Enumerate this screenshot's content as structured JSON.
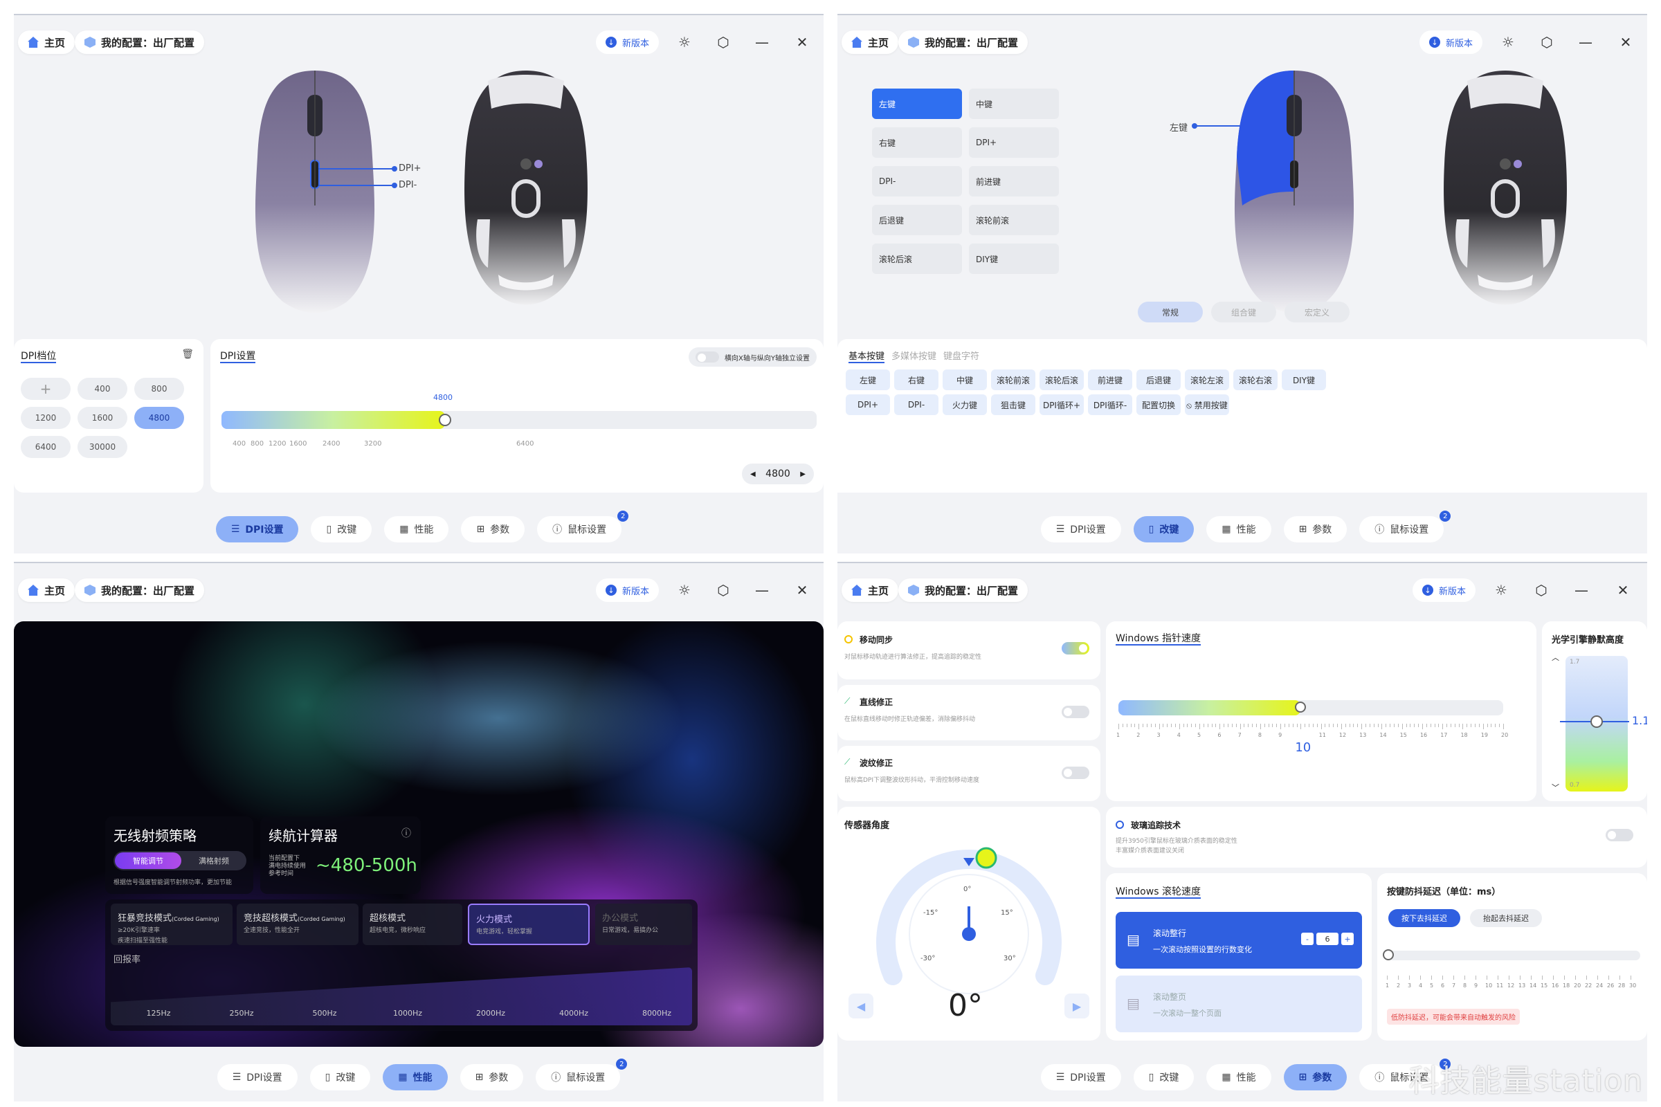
{
  "header": {
    "home": "主页",
    "config": "我的配置：出厂配置",
    "new_version": "新版本"
  },
  "tabs": [
    {
      "label": "DPI设置"
    },
    {
      "label": "改键"
    },
    {
      "label": "性能"
    },
    {
      "label": "参数"
    },
    {
      "label": "鼠标设置",
      "badge": "2"
    }
  ],
  "watermark": "科技能量station",
  "panel1": {
    "dpi_plus": "DPI+",
    "dpi_minus": "DPI-",
    "dpi_levels_title": "DPI档位",
    "dpi_levels": [
      "+",
      "400",
      "800",
      "1200",
      "1600",
      "4800",
      "6400",
      "30000"
    ],
    "active_level": "4800",
    "dpi_settings_title": "DPI设置",
    "xy_toggle_label": "横向X轴与纵向Y轴独立设置",
    "slider_value": "4800",
    "slider_fraction": 0.375,
    "ticks": [
      "400",
      "800",
      "1200",
      "1600",
      "2400",
      "3200",
      "6400"
    ],
    "stepper_value": "4800"
  },
  "panel2": {
    "left_label": "左键",
    "keys": [
      "左键",
      "中键",
      "右键",
      "DPI+",
      "DPI-",
      "前进键",
      "后退键",
      "滚轮前滚",
      "滚轮后滚",
      "DIY键"
    ],
    "active_key": "左键",
    "modes": [
      "常规",
      "组合键",
      "宏定义"
    ],
    "categories": [
      "基本按键",
      "多媒体按键",
      "键盘字符"
    ],
    "basic_keys_row1": [
      "左键",
      "右键",
      "中键",
      "滚轮前滚",
      "滚轮后滚",
      "前进键",
      "后退键",
      "滚轮左滚",
      "滚轮右滚",
      "DIY键"
    ],
    "basic_keys_row2": [
      "DPI+",
      "DPI-",
      "火力键",
      "狙击键",
      "DPI循环+",
      "DPI循环-",
      "配置切换",
      "禁用按键"
    ]
  },
  "panel3": {
    "wireless_title": "无线射频策略",
    "smart": "智能调节",
    "full": "满格射频",
    "wireless_desc": "根据信号强度智能调节射频功率，更加节能",
    "battery_title": "续航计算器",
    "battery_desc1": "当前配置下",
    "battery_desc2": "满电持续使用",
    "battery_desc3": "参考时间",
    "battery_value": "~480-500h",
    "modes": [
      {
        "name": "狂暴竞技模式",
        "tag": "(Corded Gaming)",
        "desc1": "≥20K引擎速率",
        "desc2": "疾速扫描至强性能"
      },
      {
        "name": "竞技超核模式",
        "tag": "(Corded Gaming)",
        "desc1": "全速竞技，性能全开",
        "desc2": ""
      },
      {
        "name": "超核模式",
        "tag": "",
        "desc1": "超核电竞，微秒响应",
        "desc2": ""
      },
      {
        "name": "火力模式",
        "tag": "",
        "desc1": "电竞游戏，轻松掌握",
        "desc2": ""
      },
      {
        "name": "办公模式",
        "tag": "",
        "desc1": "日常游戏，易搞办公",
        "desc2": ""
      }
    ],
    "polling_title": "回报率",
    "polling": [
      "125Hz",
      "250Hz",
      "500Hz",
      "1000Hz",
      "2000Hz",
      "4000Hz",
      "8000Hz"
    ]
  },
  "panel4": {
    "motion_sync": "移动同步",
    "motion_sync_desc": "对鼠标移动轨迹进行算法修正，提高追踪的稳定性",
    "angle_snap": "直线修正",
    "angle_snap_desc": "在鼠标直线移动时修正轨迹偏差，消除偏移抖动",
    "ripple": "波纹修正",
    "ripple_desc": "鼠标高DPI下调整波纹形抖动，平滑控制移动速度",
    "pointer_title": "Windows 指针速度",
    "pointer_value": "10",
    "pointer_ticks": [
      "1",
      "2",
      "3",
      "4",
      "5",
      "6",
      "7",
      "8",
      "9",
      "10",
      "11",
      "12",
      "13",
      "14",
      "15",
      "16",
      "17",
      "18",
      "19",
      "20"
    ],
    "lod_title": "光学引擎静默高度",
    "lod_top": "1.7",
    "lod_bottom": "0.7",
    "lod_value": "1.1",
    "sensor_angle_title": "传感器角度",
    "angle_labels": [
      "0°",
      "-15°",
      "15°",
      "-30°",
      "30°"
    ],
    "angle_value": "0°",
    "glass_title": "玻璃追踪技术",
    "glass_desc1": "提升3950引擎鼠标在玻璃介质表面的稳定性",
    "glass_desc2": "丰富媒介质表面建议关闭",
    "scroll_title": "Windows 滚轮速度",
    "scroll_line": "滚动整行",
    "scroll_line_desc": "一次滚动按照设置的行数变化",
    "scroll_lines": "6",
    "scroll_page": "滚动整页",
    "scroll_page_desc": "一次滚动一整个页面",
    "debounce_title": "按键防抖延迟（单位：ms）",
    "press_debounce": "按下去抖延迟",
    "release_debounce": "抬起去抖延迟",
    "debounce_ticks": [
      "1",
      "2",
      "3",
      "4",
      "5",
      "6",
      "7",
      "8",
      "9",
      "10",
      "11",
      "12",
      "13",
      "14",
      "15",
      "16",
      "18",
      "20",
      "22",
      "24",
      "26",
      "28",
      "30"
    ],
    "debounce_warning": "低防抖延迟，可能会带来自动触发的风险"
  }
}
